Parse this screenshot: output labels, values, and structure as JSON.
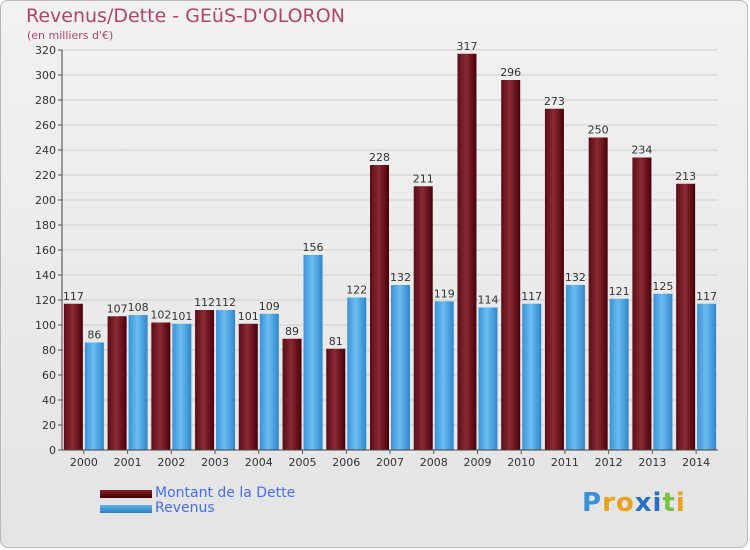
{
  "title": "Revenus/Dette - GEüS-D'OLORON",
  "subtitle": "(en milliers d'€)",
  "logo": {
    "text": "Proxiti"
  },
  "colors": {
    "debt_top": "#8a1e2c",
    "debt_bottom": "#3c0000",
    "revenue_top": "#5cb3ec",
    "revenue_bottom": "#2a7fc5",
    "title": "#b0456a",
    "legend_text": "#4a6be8"
  },
  "legend": {
    "debt_label": "Montant de la Dette",
    "revenue_label": "Revenus"
  },
  "chart_data": {
    "type": "bar",
    "title": "Revenus/Dette - GEüS-D'OLORON",
    "ylabel": "(en milliers d'€)",
    "xlabel": "",
    "ylim": [
      0,
      320
    ],
    "yticks": [
      0,
      20,
      40,
      60,
      80,
      100,
      120,
      140,
      160,
      180,
      200,
      220,
      240,
      260,
      280,
      300,
      320
    ],
    "grid": true,
    "legend_position": "bottom-left",
    "categories": [
      "2000",
      "2001",
      "2002",
      "2003",
      "2004",
      "2005",
      "2006",
      "2007",
      "2008",
      "2009",
      "2010",
      "2011",
      "2012",
      "2013",
      "2014"
    ],
    "series": [
      {
        "name": "Montant de la Dette",
        "values": [
          117,
          107,
          102,
          112,
          101,
          89,
          81,
          228,
          211,
          317,
          296,
          273,
          250,
          234,
          213
        ]
      },
      {
        "name": "Revenus",
        "values": [
          86,
          108,
          101,
          112,
          109,
          156,
          122,
          132,
          119,
          114,
          117,
          132,
          121,
          125,
          117
        ]
      }
    ]
  }
}
